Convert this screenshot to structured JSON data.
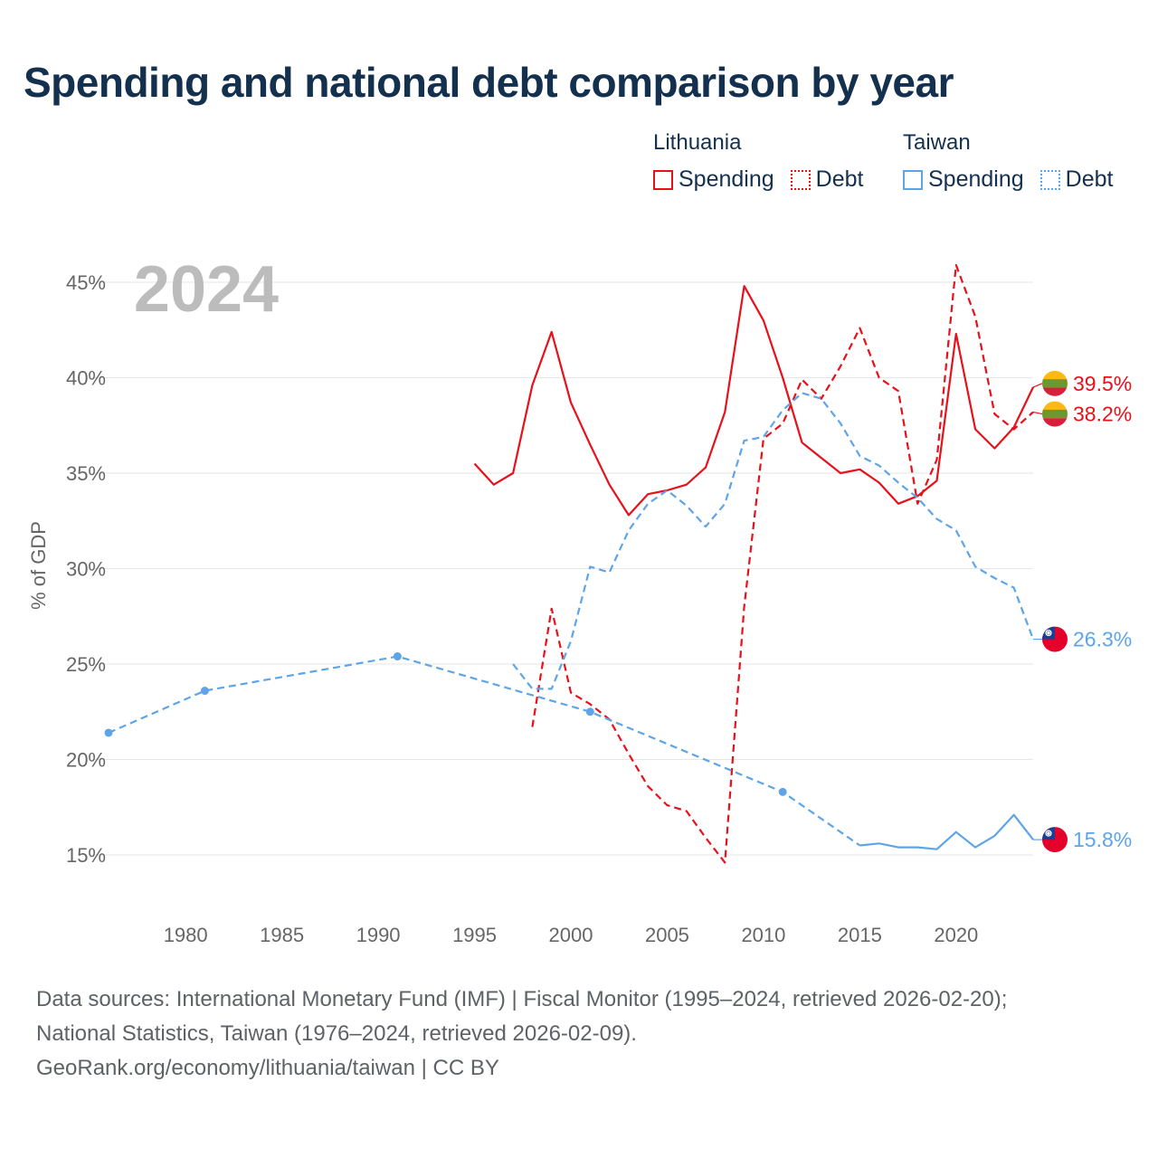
{
  "title": "Spending and national debt comparison by year",
  "legend": {
    "groups": [
      {
        "country": "Lithuania",
        "color": "#e8101a",
        "items": [
          "Spending",
          "Debt"
        ]
      },
      {
        "country": "Taiwan",
        "color": "#5da5e8",
        "items": [
          "Spending",
          "Debt"
        ]
      }
    ]
  },
  "year_watermark": "2024",
  "footer": {
    "line1": "Data sources: International Monetary Fund (IMF) | Fiscal Monitor (1995–2024, retrieved 2026-02-20);",
    "line2": "National Statistics, Taiwan (1976–2024, retrieved 2026-02-09).",
    "line3": "GeoRank.org/economy/lithuania/taiwan | CC BY"
  },
  "chart_data": {
    "type": "line",
    "title": "Spending and national debt comparison by year",
    "xlabel": "",
    "ylabel": "% of GDP",
    "xlim": [
      1976,
      2024
    ],
    "ylim": [
      13,
      46.5
    ],
    "xticks": [
      1980,
      1985,
      1990,
      1995,
      2000,
      2005,
      2010,
      2015,
      2020
    ],
    "xtick_labels": [
      "1980",
      "1985",
      "1990",
      "1995",
      "2000",
      "2005",
      "2010",
      "2015",
      "2020"
    ],
    "yticks": [
      15,
      20,
      25,
      30,
      35,
      40,
      45
    ],
    "ytick_labels": [
      "15%",
      "20%",
      "25%",
      "30%",
      "35%",
      "40%",
      "45%"
    ],
    "grid": true,
    "series": [
      {
        "name": "Lithuania Spending",
        "country": "Lithuania",
        "color": "#e8101a",
        "dash": false,
        "markers": false,
        "x": [
          1995,
          1996,
          1997,
          1998,
          1999,
          2000,
          2001,
          2002,
          2003,
          2004,
          2005,
          2006,
          2007,
          2008,
          2009,
          2010,
          2011,
          2012,
          2013,
          2014,
          2015,
          2016,
          2017,
          2018,
          2019,
          2020,
          2021,
          2022,
          2023,
          2024
        ],
        "y": [
          35.5,
          34.4,
          35.0,
          39.6,
          42.4,
          38.7,
          36.5,
          34.4,
          32.8,
          33.9,
          34.1,
          34.4,
          35.3,
          38.2,
          44.8,
          43.0,
          40.0,
          36.6,
          35.8,
          35.0,
          35.2,
          34.5,
          33.4,
          33.8,
          34.6,
          42.3,
          37.3,
          36.3,
          37.4,
          39.5
        ]
      },
      {
        "name": "Lithuania Debt",
        "country": "Lithuania",
        "color": "#e8101a",
        "dash": true,
        "markers": false,
        "x": [
          1998,
          1999,
          2000,
          2001,
          2002,
          2003,
          2004,
          2005,
          2006,
          2007,
          2008,
          2009,
          2010,
          2011,
          2012,
          2013,
          2014,
          2015,
          2016,
          2017,
          2018,
          2019,
          2020,
          2021,
          2022,
          2023,
          2024
        ],
        "y": [
          21.7,
          27.9,
          23.5,
          22.9,
          22.1,
          20.3,
          18.6,
          17.6,
          17.3,
          15.9,
          14.6,
          28.0,
          36.8,
          37.6,
          39.9,
          38.9,
          40.6,
          42.6,
          40.0,
          39.3,
          33.4,
          35.7,
          45.9,
          43.2,
          38.1,
          37.3,
          38.2
        ]
      },
      {
        "name": "Taiwan Spending",
        "country": "Taiwan",
        "color": "#5da5e8",
        "dash": false,
        "markers": false,
        "x": [
          2015,
          2016,
          2017,
          2018,
          2019,
          2020,
          2021,
          2022,
          2023,
          2024
        ],
        "y": [
          15.5,
          15.6,
          15.4,
          15.4,
          15.3,
          16.2,
          15.4,
          16.0,
          17.1,
          15.8
        ]
      },
      {
        "name": "Taiwan Spending (sparse)",
        "country": "Taiwan",
        "color": "#5da5e8",
        "dash": true,
        "markers": true,
        "x": [
          1976,
          1981,
          1991,
          2001,
          2011,
          2015
        ],
        "y": [
          21.4,
          23.6,
          25.4,
          22.5,
          18.3,
          15.5
        ]
      },
      {
        "name": "Taiwan Debt",
        "country": "Taiwan",
        "color": "#5da5e8",
        "dash": true,
        "markers": false,
        "x": [
          1997,
          1998,
          1999,
          2000,
          2001,
          2002,
          2003,
          2004,
          2005,
          2006,
          2007,
          2008,
          2009,
          2010,
          2011,
          2012,
          2013,
          2014,
          2015,
          2016,
          2017,
          2018,
          2019,
          2020,
          2021,
          2022,
          2023,
          2024
        ],
        "y": [
          25.0,
          23.7,
          23.7,
          26.2,
          30.1,
          29.8,
          32.0,
          33.4,
          34.1,
          33.3,
          32.2,
          33.4,
          36.7,
          36.9,
          38.3,
          39.2,
          38.9,
          37.6,
          35.9,
          35.4,
          34.5,
          33.7,
          32.6,
          32.0,
          30.1,
          29.5,
          29.0,
          26.3
        ]
      }
    ],
    "end_labels": [
      {
        "text": "39.5%",
        "value": 39.5,
        "color": "#e8101a",
        "flag": "lithuania-flag-icon",
        "label_y": 39.7
      },
      {
        "text": "38.2%",
        "value": 38.2,
        "color": "#e8101a",
        "flag": "lithuania-flag-icon",
        "label_y": 38.1
      },
      {
        "text": "26.3%",
        "value": 26.3,
        "color": "#5da5e8",
        "flag": "taiwan-flag-icon",
        "label_y": 26.3
      },
      {
        "text": "15.8%",
        "value": 15.8,
        "color": "#5da5e8",
        "flag": "taiwan-flag-icon",
        "label_y": 15.8
      }
    ]
  }
}
